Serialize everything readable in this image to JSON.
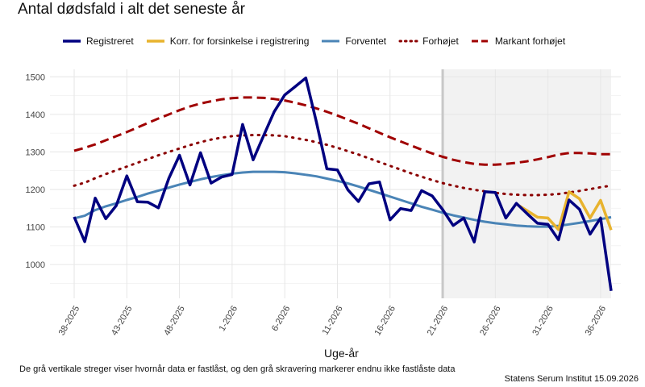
{
  "chart_data": {
    "type": "line",
    "title": "Antal dødsfald i alt det seneste år",
    "xlabel": "Uge-år",
    "ylabel": "",
    "ylim": [
      910,
      1520
    ],
    "yticks": [
      1000,
      1100,
      1200,
      1300,
      1400,
      1500
    ],
    "x": [
      "38-2025",
      "39-2025",
      "40-2025",
      "41-2025",
      "42-2025",
      "43-2025",
      "44-2025",
      "45-2025",
      "46-2025",
      "47-2025",
      "48-2025",
      "49-2025",
      "50-2025",
      "51-2025",
      "52-2025",
      "1-2026",
      "2-2026",
      "3-2026",
      "4-2026",
      "5-2026",
      "6-2026",
      "7-2026",
      "8-2026",
      "9-2026",
      "10-2026",
      "11-2026",
      "12-2026",
      "13-2026",
      "14-2026",
      "15-2026",
      "16-2026",
      "17-2026",
      "18-2026",
      "19-2026",
      "20-2026",
      "21-2026",
      "22-2026",
      "23-2026",
      "24-2026",
      "25-2026",
      "26-2026",
      "27-2026",
      "28-2026",
      "29-2026",
      "30-2026",
      "31-2026",
      "32-2026",
      "33-2026",
      "34-2026",
      "35-2026",
      "36-2026",
      "37-2026"
    ],
    "xticks": [
      "38-2025",
      "43-2025",
      "48-2025",
      "1-2026",
      "6-2026",
      "11-2026",
      "16-2026",
      "21-2026",
      "26-2026",
      "31-2026",
      "36-2026"
    ],
    "fixed_line_at": "21-2026",
    "shaded_from": "21-2026",
    "grid": true,
    "legend_position": "top",
    "series": [
      {
        "name": "Registreret",
        "color": "#000080",
        "style": "solid",
        "values": [
          1127,
          1061,
          1177,
          1122,
          1157,
          1236,
          1167,
          1166,
          1151,
          1230,
          1291,
          1212,
          1298,
          1217,
          1233,
          1240,
          1373,
          1279,
          1344,
          1407,
          1452,
          1474,
          1497,
          1380,
          1255,
          1252,
          1199,
          1168,
          1215,
          1220,
          1119,
          1149,
          1144,
          1197,
          1183,
          1146,
          1104,
          1124,
          1060,
          1194,
          1192,
          1124,
          1163,
          1136,
          1110,
          1107,
          1066,
          1172,
          1147,
          1081,
          1124,
          930
        ]
      },
      {
        "name": "Korr. for forsinkelse i registrering",
        "color": "#e8b32e",
        "style": "solid",
        "values": [
          null,
          null,
          null,
          null,
          null,
          null,
          null,
          null,
          null,
          null,
          null,
          null,
          null,
          null,
          null,
          null,
          null,
          null,
          null,
          null,
          null,
          null,
          null,
          null,
          null,
          null,
          null,
          null,
          null,
          null,
          null,
          null,
          null,
          null,
          null,
          null,
          null,
          null,
          null,
          null,
          null,
          null,
          1161,
          1144,
          1126,
          1124,
          1093,
          1194,
          1175,
          1124,
          1171,
          1092
        ]
      },
      {
        "name": "Forventet",
        "color": "#4a84b6",
        "style": "solid",
        "values": [
          1123,
          1130,
          1145,
          1155,
          1163,
          1172,
          1180,
          1189,
          1197,
          1205,
          1213,
          1220,
          1227,
          1233,
          1238,
          1242,
          1245,
          1247,
          1247,
          1247,
          1246,
          1243,
          1239,
          1235,
          1229,
          1223,
          1216,
          1208,
          1199,
          1190,
          1181,
          1172,
          1163,
          1154,
          1146,
          1138,
          1131,
          1125,
          1119,
          1114,
          1110,
          1107,
          1104,
          1102,
          1101,
          1101,
          1103,
          1107,
          1111,
          1116,
          1121,
          1126
        ]
      },
      {
        "name": "Forhøjet",
        "color": "#8b0000",
        "style": "dotted",
        "values": [
          1210,
          1218,
          1230,
          1241,
          1251,
          1261,
          1271,
          1281,
          1291,
          1300,
          1309,
          1318,
          1326,
          1333,
          1338,
          1342,
          1344,
          1345,
          1345,
          1344,
          1342,
          1337,
          1332,
          1326,
          1319,
          1311,
          1302,
          1293,
          1283,
          1273,
          1263,
          1253,
          1243,
          1234,
          1225,
          1217,
          1210,
          1204,
          1199,
          1195,
          1191,
          1188,
          1186,
          1185,
          1185,
          1186,
          1188,
          1192,
          1196,
          1201,
          1206,
          1210
        ]
      },
      {
        "name": "Markant forhøjet",
        "color": "#a00000",
        "style": "dashed",
        "values": [
          1303,
          1311,
          1320,
          1331,
          1342,
          1353,
          1365,
          1377,
          1389,
          1400,
          1411,
          1421,
          1429,
          1435,
          1440,
          1443,
          1445,
          1445,
          1444,
          1441,
          1437,
          1431,
          1424,
          1416,
          1407,
          1397,
          1386,
          1375,
          1363,
          1351,
          1339,
          1328,
          1317,
          1306,
          1296,
          1287,
          1279,
          1273,
          1268,
          1266,
          1266,
          1268,
          1271,
          1275,
          1280,
          1286,
          1293,
          1297,
          1297,
          1296,
          1294,
          1294
        ]
      }
    ]
  },
  "footnote": "De grå vertikale streger viser hvornår data er fastlåst, og den grå skravering markerer endnu ikke fastlåste data",
  "source": "Statens Serum Institut  15.09.2026"
}
